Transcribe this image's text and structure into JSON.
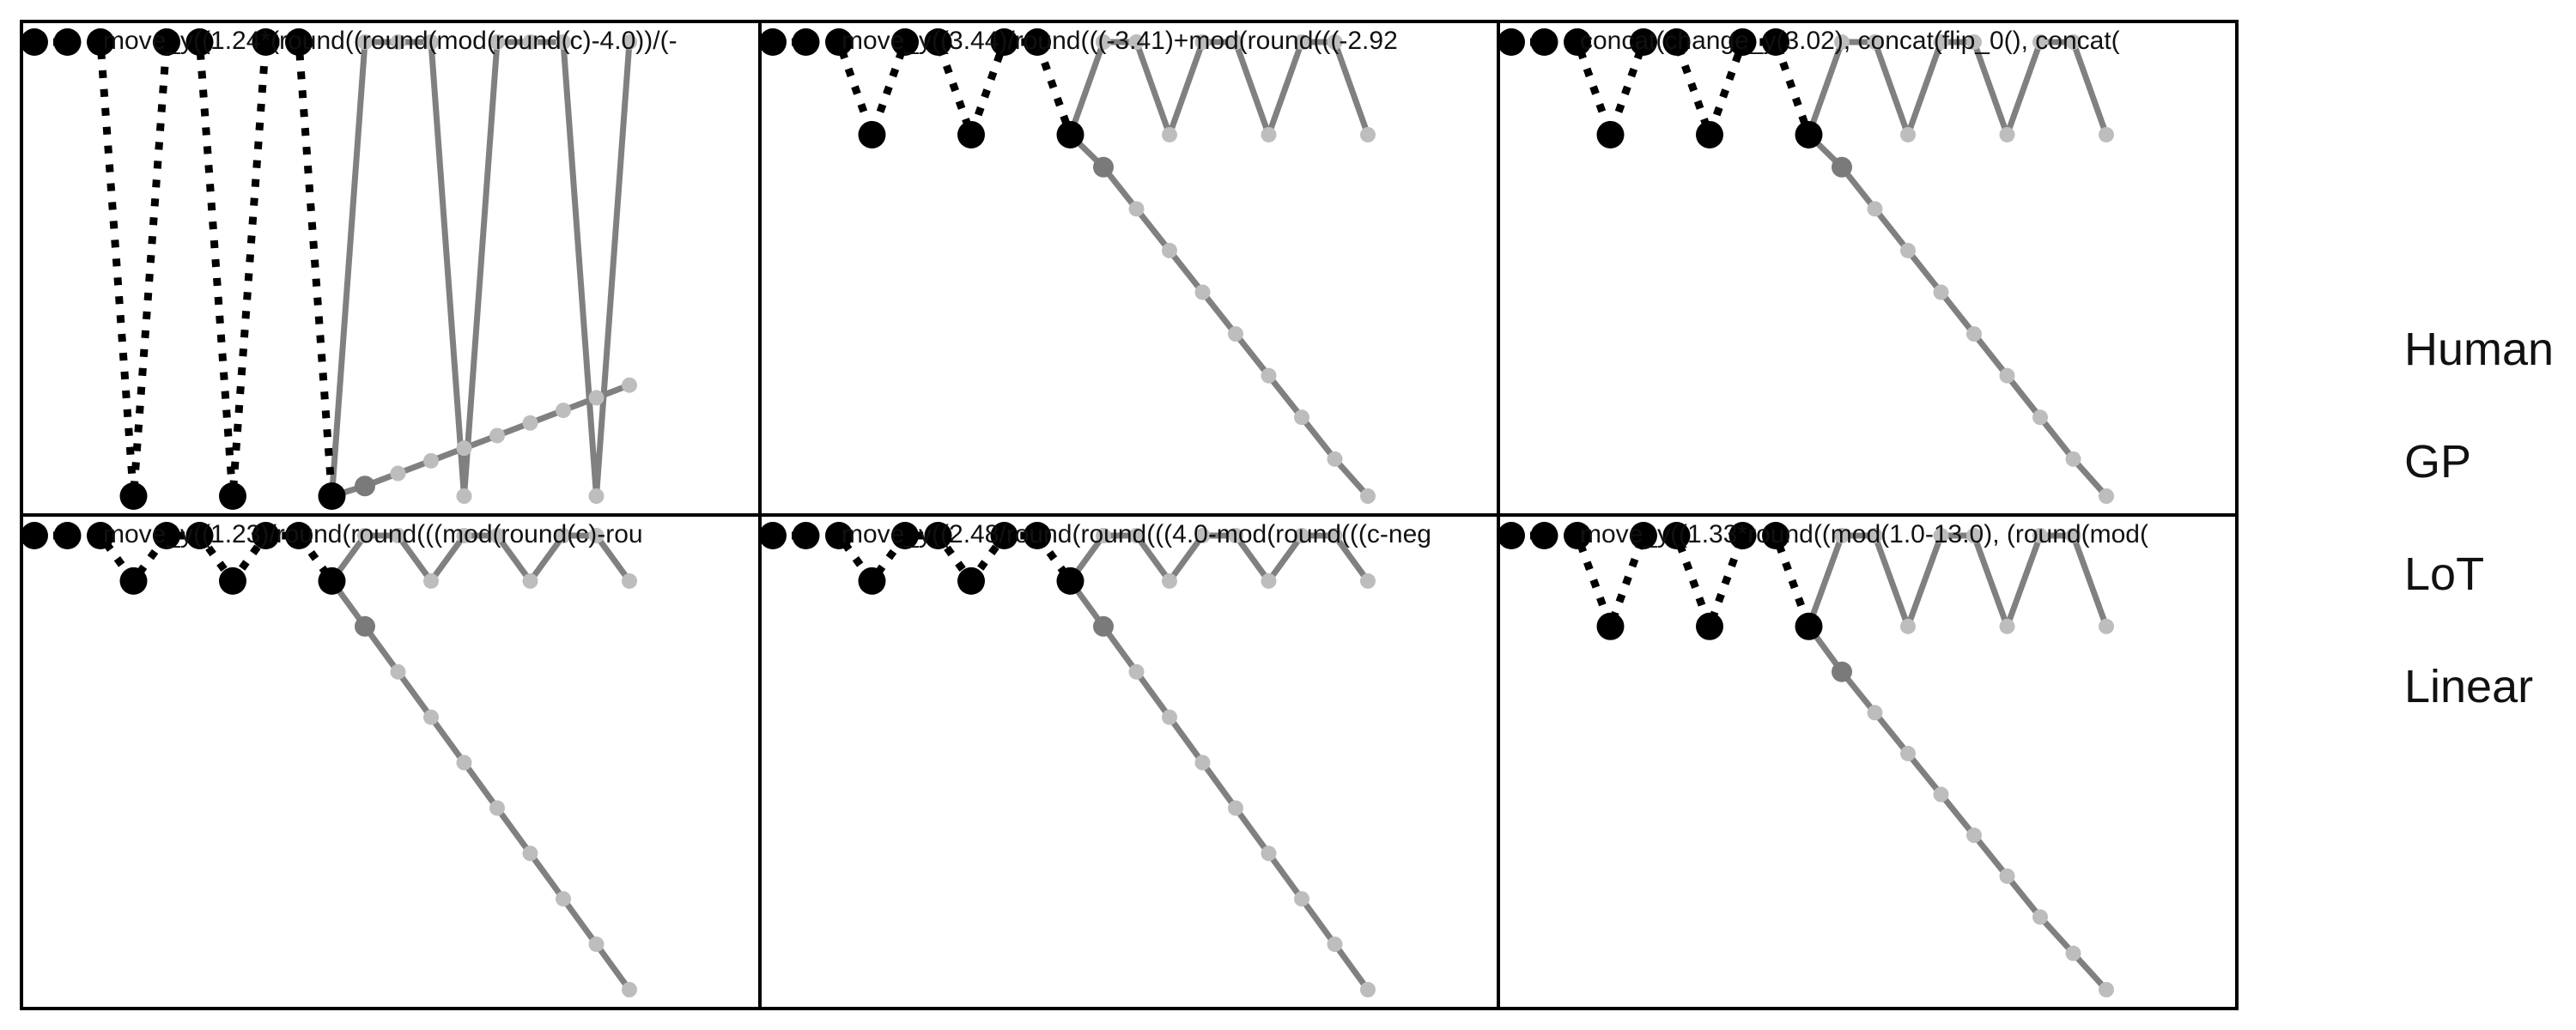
{
  "colors": {
    "observed_point": "#000000",
    "predicted_line": "#808080",
    "predicted_point_dark": "#7a7a7a",
    "predicted_point_light": "#bdbdbd",
    "panel_border": "#000000",
    "text": "#111111"
  },
  "line_styles": {
    "observed": "dotted",
    "predicted": "solid"
  },
  "legend": {
    "items": [
      "Human",
      "GP",
      "LoT",
      "Linear"
    ]
  },
  "panels": [
    {
      "expression": "move_y((1.24*(round((round(mod(round(c)-4.0))/(-",
      "observed": [
        [
          1,
          0
        ],
        [
          2,
          0
        ],
        [
          3,
          0
        ],
        [
          4,
          -9
        ],
        [
          5,
          0
        ],
        [
          6,
          0
        ],
        [
          7,
          -9
        ],
        [
          8,
          0
        ],
        [
          9,
          0
        ],
        [
          10,
          -9
        ]
      ],
      "predicted": [
        [
          10,
          -9
        ],
        [
          11,
          0
        ],
        [
          12,
          0
        ],
        [
          13,
          0
        ],
        [
          14,
          -9
        ],
        [
          15,
          0
        ],
        [
          16,
          0
        ],
        [
          17,
          0
        ],
        [
          18,
          -9
        ],
        [
          19,
          0
        ]
      ],
      "extra": [
        [
          10,
          -9
        ],
        [
          11,
          -8.8
        ],
        [
          12,
          -8.55
        ],
        [
          13,
          -8.3
        ],
        [
          14,
          -8.05
        ],
        [
          15,
          -7.8
        ],
        [
          16,
          -7.55
        ],
        [
          17,
          -7.3
        ],
        [
          18,
          -7.05
        ],
        [
          19,
          -6.8
        ]
      ]
    },
    {
      "expression": "move_y((3.44)/round(((-3.41)+mod(round(((-2.92",
      "observed": [
        [
          1,
          0
        ],
        [
          2,
          0
        ],
        [
          3,
          0
        ],
        [
          4,
          -2
        ],
        [
          5,
          0
        ],
        [
          6,
          0
        ],
        [
          7,
          -2
        ],
        [
          8,
          0
        ],
        [
          9,
          0
        ],
        [
          10,
          -2
        ]
      ],
      "predicted": [
        [
          10,
          -2
        ],
        [
          11,
          0
        ],
        [
          12,
          0
        ],
        [
          13,
          -2
        ],
        [
          14,
          0
        ],
        [
          15,
          0
        ],
        [
          16,
          -2
        ],
        [
          17,
          0
        ],
        [
          18,
          0
        ],
        [
          19,
          -2
        ]
      ],
      "extra": [
        [
          10,
          -2
        ],
        [
          11,
          -2.7
        ],
        [
          12,
          -3.6
        ],
        [
          13,
          -4.5
        ],
        [
          14,
          -5.4
        ],
        [
          15,
          -6.3
        ],
        [
          16,
          -7.2
        ],
        [
          17,
          -8.1
        ],
        [
          18,
          -9
        ],
        [
          19,
          -9.8
        ]
      ]
    },
    {
      "expression": "concat(change_y(3.02), concat(flip_0(), concat(",
      "observed": [
        [
          1,
          0
        ],
        [
          2,
          0
        ],
        [
          3,
          0
        ],
        [
          4,
          -2
        ],
        [
          5,
          0
        ],
        [
          6,
          0
        ],
        [
          7,
          -2
        ],
        [
          8,
          0
        ],
        [
          9,
          0
        ],
        [
          10,
          -2
        ]
      ],
      "predicted": [
        [
          10,
          -2
        ],
        [
          11,
          0
        ],
        [
          12,
          0
        ],
        [
          13,
          -2
        ],
        [
          14,
          0
        ],
        [
          15,
          0
        ],
        [
          16,
          -2
        ],
        [
          17,
          0
        ],
        [
          18,
          0
        ],
        [
          19,
          -2
        ]
      ],
      "extra": [
        [
          10,
          -2
        ],
        [
          11,
          -2.7
        ],
        [
          12,
          -3.6
        ],
        [
          13,
          -4.5
        ],
        [
          14,
          -5.4
        ],
        [
          15,
          -6.3
        ],
        [
          16,
          -7.2
        ],
        [
          17,
          -8.1
        ],
        [
          18,
          -9
        ],
        [
          19,
          -9.8
        ]
      ]
    },
    {
      "expression": "move_y((1.23)/round(round(((mod(round(c)-rou",
      "observed": [
        [
          1,
          0
        ],
        [
          2,
          0
        ],
        [
          3,
          0
        ],
        [
          4,
          -1
        ],
        [
          5,
          0
        ],
        [
          6,
          0
        ],
        [
          7,
          -1
        ],
        [
          8,
          0
        ],
        [
          9,
          0
        ],
        [
          10,
          -1
        ]
      ],
      "predicted": [
        [
          10,
          -1
        ],
        [
          11,
          0
        ],
        [
          12,
          0
        ],
        [
          13,
          -1
        ],
        [
          14,
          0
        ],
        [
          15,
          0
        ],
        [
          16,
          -1
        ],
        [
          17,
          0
        ],
        [
          18,
          0
        ],
        [
          19,
          -1
        ]
      ],
      "extra": [
        [
          10,
          -1
        ],
        [
          11,
          -2
        ],
        [
          12,
          -3
        ],
        [
          13,
          -4
        ],
        [
          14,
          -5
        ],
        [
          15,
          -6
        ],
        [
          16,
          -7
        ],
        [
          17,
          -8
        ],
        [
          18,
          -9
        ],
        [
          19,
          -10
        ]
      ]
    },
    {
      "expression": "move_y((2.48/round(round(((4.0-mod(round(((c-neg",
      "observed": [
        [
          1,
          0
        ],
        [
          2,
          0
        ],
        [
          3,
          0
        ],
        [
          4,
          -1
        ],
        [
          5,
          0
        ],
        [
          6,
          0
        ],
        [
          7,
          -1
        ],
        [
          8,
          0
        ],
        [
          9,
          0
        ],
        [
          10,
          -1
        ]
      ],
      "predicted": [
        [
          10,
          -1
        ],
        [
          11,
          0
        ],
        [
          12,
          0
        ],
        [
          13,
          -1
        ],
        [
          14,
          0
        ],
        [
          15,
          0
        ],
        [
          16,
          -1
        ],
        [
          17,
          0
        ],
        [
          18,
          0
        ],
        [
          19,
          -1
        ]
      ],
      "extra": [
        [
          10,
          -1
        ],
        [
          11,
          -2
        ],
        [
          12,
          -3
        ],
        [
          13,
          -4
        ],
        [
          14,
          -5
        ],
        [
          15,
          -6
        ],
        [
          16,
          -7
        ],
        [
          17,
          -8
        ],
        [
          18,
          -9
        ],
        [
          19,
          -10
        ]
      ]
    },
    {
      "expression": "move_y((1.33*round((mod(1.0-13.0), (round(mod(",
      "observed": [
        [
          1,
          0
        ],
        [
          2,
          0
        ],
        [
          3,
          0
        ],
        [
          4,
          -2
        ],
        [
          5,
          0
        ],
        [
          6,
          0
        ],
        [
          7,
          -2
        ],
        [
          8,
          0
        ],
        [
          9,
          0
        ],
        [
          10,
          -2
        ]
      ],
      "predicted": [
        [
          10,
          -2
        ],
        [
          11,
          0
        ],
        [
          12,
          0
        ],
        [
          13,
          -2
        ],
        [
          14,
          0
        ],
        [
          15,
          0
        ],
        [
          16,
          -2
        ],
        [
          17,
          0
        ],
        [
          18,
          0
        ],
        [
          19,
          -2
        ]
      ],
      "extra": [
        [
          10,
          -2
        ],
        [
          11,
          -3
        ],
        [
          12,
          -3.9
        ],
        [
          13,
          -4.8
        ],
        [
          14,
          -5.7
        ],
        [
          15,
          -6.6
        ],
        [
          16,
          -7.5
        ],
        [
          17,
          -8.4
        ],
        [
          18,
          -9.2
        ],
        [
          19,
          -10
        ]
      ]
    }
  ]
}
